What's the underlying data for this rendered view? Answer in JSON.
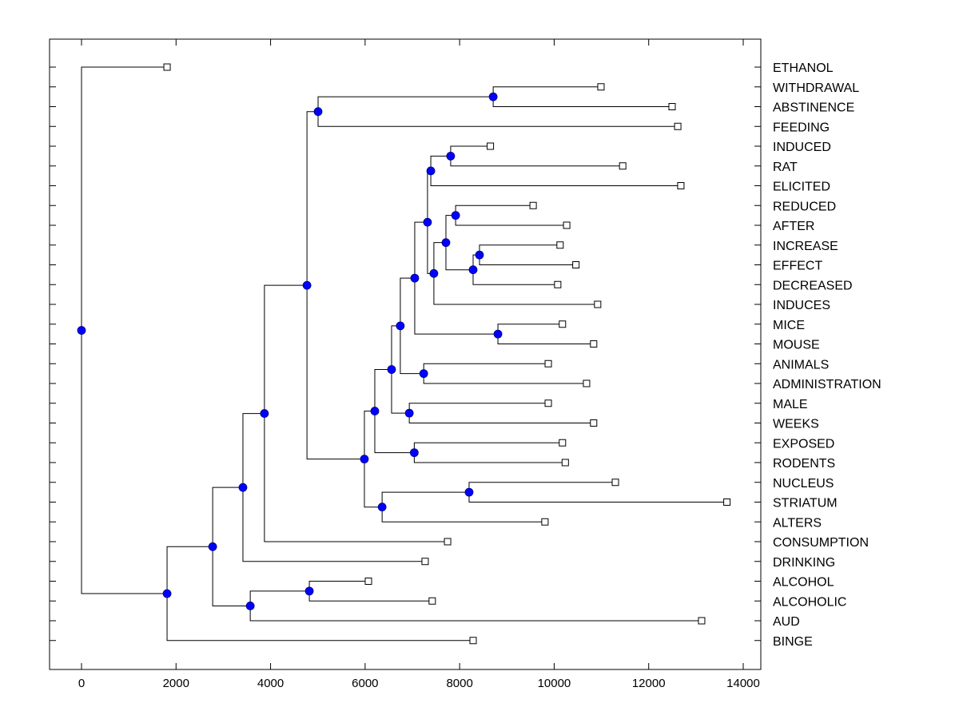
{
  "chart_data": {
    "type": "dendrogram",
    "title": "",
    "xlabel": "",
    "ylabel": "",
    "xlim": [
      -700,
      14400
    ],
    "x_ticks": [
      0,
      2000,
      4000,
      6000,
      8000,
      10000,
      12000,
      14000
    ],
    "x_tick_labels": [
      "0",
      "2000",
      "4000",
      "6000",
      "8000",
      "10000",
      "12000",
      "14000"
    ],
    "grid": false,
    "node_color": "#0000ff",
    "leaf_marker": "open-square",
    "leaves": [
      {
        "label": "ETHANOL",
        "x": 1810
      },
      {
        "label": "WITHDRAWAL",
        "x": 10990
      },
      {
        "label": "ABSTINENCE",
        "x": 12495
      },
      {
        "label": "FEEDING",
        "x": 12615
      },
      {
        "label": "INDUCED",
        "x": 8650
      },
      {
        "label": "RAT",
        "x": 11450
      },
      {
        "label": "ELICITED",
        "x": 12680
      },
      {
        "label": "REDUCED",
        "x": 9555
      },
      {
        "label": "AFTER",
        "x": 10265
      },
      {
        "label": "INCREASE",
        "x": 10125
      },
      {
        "label": "EFFECT",
        "x": 10460
      },
      {
        "label": "DECREASED",
        "x": 10075
      },
      {
        "label": "INDUCES",
        "x": 10920
      },
      {
        "label": "MICE",
        "x": 10175
      },
      {
        "label": "MOUSE",
        "x": 10835
      },
      {
        "label": "ANIMALS",
        "x": 9875
      },
      {
        "label": "ADMINISTRATION",
        "x": 10685
      },
      {
        "label": "MALE",
        "x": 9875
      },
      {
        "label": "WEEKS",
        "x": 10835
      },
      {
        "label": "EXPOSED",
        "x": 10175
      },
      {
        "label": "RODENTS",
        "x": 10235
      },
      {
        "label": "NUCLEUS",
        "x": 11295
      },
      {
        "label": "STRIATUM",
        "x": 13655
      },
      {
        "label": "ALTERS",
        "x": 9805
      },
      {
        "label": "CONSUMPTION",
        "x": 7745
      },
      {
        "label": "DRINKING",
        "x": 7270
      },
      {
        "label": "ALCOHOL",
        "x": 6070
      },
      {
        "label": "ALCOHOLIC",
        "x": 7420
      },
      {
        "label": "AUD",
        "x": 13120
      },
      {
        "label": "BINGE",
        "x": 8285
      }
    ],
    "nodes": [
      {
        "id": "n0",
        "x": 0,
        "children": [
          "L0",
          "n1"
        ]
      },
      {
        "id": "n1",
        "x": 1810,
        "children": [
          "n2",
          "L29"
        ]
      },
      {
        "id": "n2",
        "x": 2775,
        "children": [
          "n3",
          "n4"
        ]
      },
      {
        "id": "n4",
        "x": 3570,
        "children": [
          "n5",
          "L28"
        ]
      },
      {
        "id": "n5",
        "x": 4820,
        "children": [
          "L26",
          "L27"
        ]
      },
      {
        "id": "n3",
        "x": 3415,
        "children": [
          "n6",
          "L25"
        ]
      },
      {
        "id": "n6",
        "x": 3870,
        "children": [
          "n7",
          "L24"
        ]
      },
      {
        "id": "n7",
        "x": 4770,
        "children": [
          "n8",
          "n9"
        ]
      },
      {
        "id": "n8",
        "x": 5005,
        "children": [
          "n10",
          "L3"
        ]
      },
      {
        "id": "n10",
        "x": 8710,
        "children": [
          "L1",
          "L2"
        ]
      },
      {
        "id": "n9",
        "x": 5985,
        "children": [
          "n11",
          "n12"
        ]
      },
      {
        "id": "n12",
        "x": 6360,
        "children": [
          "n13",
          "L23"
        ]
      },
      {
        "id": "n13",
        "x": 8200,
        "children": [
          "L21",
          "L22"
        ]
      },
      {
        "id": "n11",
        "x": 6205,
        "children": [
          "n14",
          "n15"
        ]
      },
      {
        "id": "n15",
        "x": 7040,
        "children": [
          "L19",
          "L20"
        ]
      },
      {
        "id": "n14",
        "x": 6560,
        "children": [
          "n16",
          "n17"
        ]
      },
      {
        "id": "n17",
        "x": 6935,
        "children": [
          "L17",
          "L18"
        ]
      },
      {
        "id": "n16",
        "x": 6745,
        "children": [
          "n18",
          "n19"
        ]
      },
      {
        "id": "n19",
        "x": 7240,
        "children": [
          "L15",
          "L16"
        ]
      },
      {
        "id": "n18",
        "x": 7050,
        "children": [
          "n20",
          "n21"
        ]
      },
      {
        "id": "n21",
        "x": 8810,
        "children": [
          "L13",
          "L14"
        ]
      },
      {
        "id": "n20",
        "x": 7320,
        "children": [
          "n22",
          "n23"
        ]
      },
      {
        "id": "n22",
        "x": 7390,
        "children": [
          "n24",
          "L6"
        ]
      },
      {
        "id": "n24",
        "x": 7810,
        "children": [
          "L4",
          "L5"
        ]
      },
      {
        "id": "n23",
        "x": 7455,
        "children": [
          "n25",
          "L12"
        ]
      },
      {
        "id": "n25",
        "x": 7710,
        "children": [
          "n26",
          "n27"
        ]
      },
      {
        "id": "n26",
        "x": 7915,
        "children": [
          "L7",
          "L8"
        ]
      },
      {
        "id": "n27",
        "x": 8285,
        "children": [
          "n28",
          "L11"
        ]
      },
      {
        "id": "n28",
        "x": 8420,
        "children": [
          "L9",
          "L10"
        ]
      }
    ]
  }
}
